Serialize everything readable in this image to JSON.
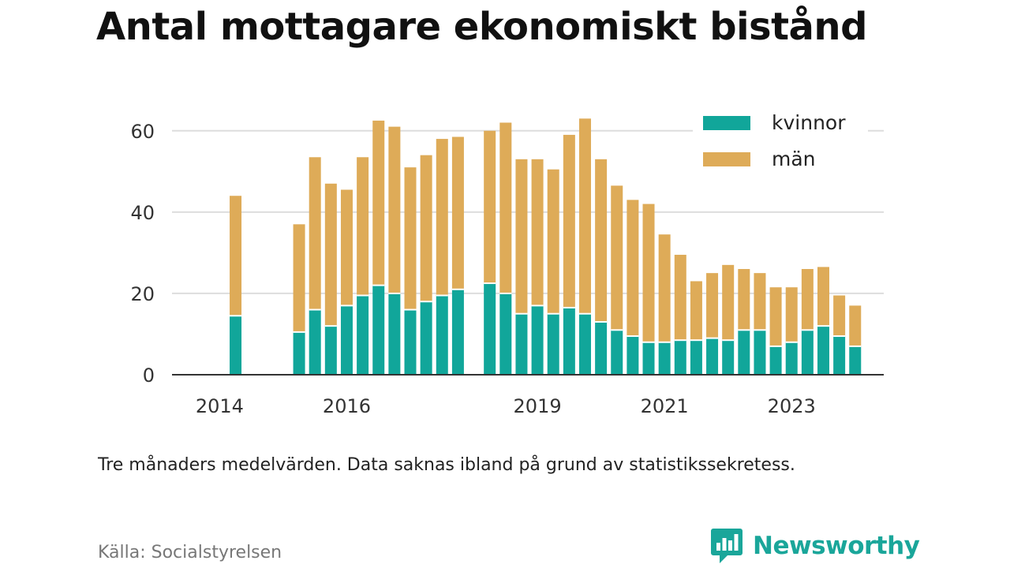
{
  "title": "Antal mottagare ekonomiskt bistånd",
  "note": "Tre månaders medelvärden. Data saknas ibland på grund av statistikssekretess.",
  "source": "Källa: Socialstyrelsen",
  "brand": {
    "name": "Newsworthy",
    "icon": "newsworthy-logo-icon",
    "color": "#1aa69a"
  },
  "chart_data": {
    "type": "bar",
    "stacked": true,
    "x": [
      2014.25,
      2015.25,
      2015.5,
      2015.75,
      2016.0,
      2016.25,
      2016.5,
      2016.75,
      2017.0,
      2017.25,
      2017.5,
      2017.75,
      2018.25,
      2018.5,
      2018.75,
      2019.0,
      2019.25,
      2019.5,
      2019.75,
      2020.0,
      2020.25,
      2020.5,
      2020.75,
      2021.0,
      2021.25,
      2021.5,
      2021.75,
      2022.0,
      2022.25,
      2022.5,
      2022.75,
      2023.0,
      2023.25,
      2023.5,
      2023.75,
      2024.0
    ],
    "series": [
      {
        "name": "kvinnor",
        "color": "#11a69a",
        "values": [
          14.5,
          10.5,
          16,
          12,
          17,
          19.5,
          22,
          20,
          16,
          18,
          19.5,
          21,
          22.5,
          20,
          15,
          17,
          15,
          16.5,
          15,
          13,
          11,
          9.5,
          8,
          8,
          8.5,
          8.5,
          9,
          8.5,
          11,
          11,
          7,
          8,
          11,
          12,
          9.5,
          7
        ]
      },
      {
        "name": "män",
        "color": "#deab58",
        "values": [
          29.5,
          26.5,
          37.5,
          35,
          28.5,
          34,
          40.5,
          41,
          35,
          36,
          38.5,
          37.5,
          37.5,
          42,
          38,
          36,
          35.5,
          42.5,
          48,
          40,
          35.5,
          33.5,
          34,
          26.5,
          21,
          14.5,
          16,
          18.5,
          15,
          14,
          14.5,
          13.5,
          15,
          14.5,
          10,
          10
        ]
      }
    ],
    "x_ticks": [
      "2014",
      "2016",
      "2019",
      "2021",
      "2023"
    ],
    "x_tick_values": [
      2014,
      2016,
      2019,
      2021,
      2023
    ],
    "y_ticks": [
      "0",
      "20",
      "40",
      "60"
    ],
    "y_tick_values": [
      0,
      20,
      40,
      60
    ],
    "xlim": [
      2013.25,
      2024.45
    ],
    "ylim": [
      0,
      65
    ],
    "grid": true,
    "legend": "top-right",
    "xlabel": "",
    "ylabel": ""
  }
}
